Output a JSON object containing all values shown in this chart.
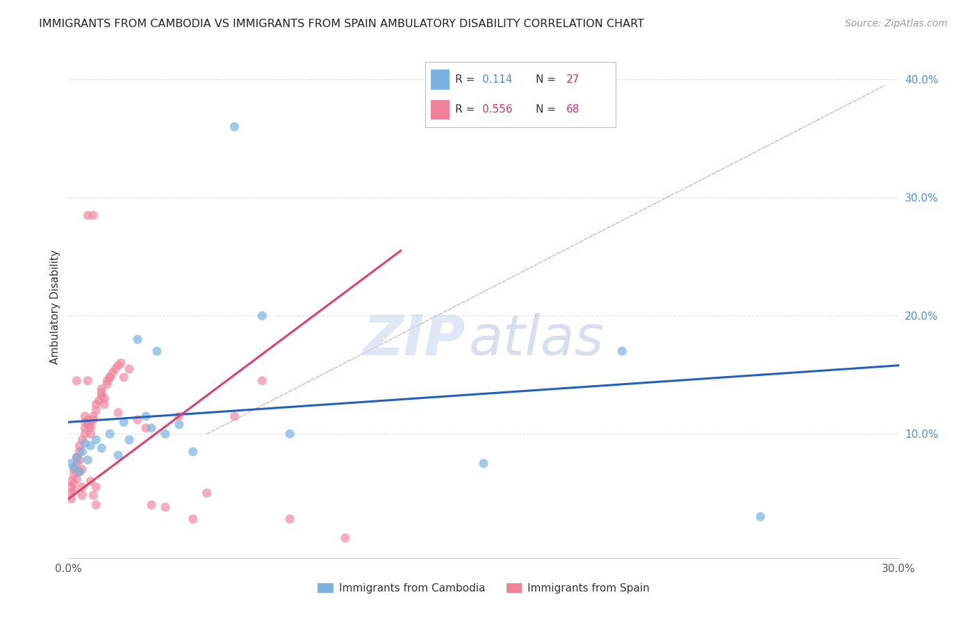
{
  "title": "IMMIGRANTS FROM CAMBODIA VS IMMIGRANTS FROM SPAIN AMBULATORY DISABILITY CORRELATION CHART",
  "source": "Source: ZipAtlas.com",
  "ylabel": "Ambulatory Disability",
  "xlim": [
    0.0,
    0.3
  ],
  "ylim": [
    -0.005,
    0.42
  ],
  "background_color": "#ffffff",
  "grid_color": "#dddddd",
  "cambodia_color": "#7ab3e0",
  "spain_color": "#f0829a",
  "cambodia_R": 0.114,
  "cambodia_N": 27,
  "spain_R": 0.556,
  "spain_N": 68,
  "cambodia_line_color": "#2060c0",
  "spain_line_color": "#e0406a",
  "ref_line_color": "#ccaaaa",
  "watermark_zip_color": "#c8d8f0",
  "watermark_atlas_color": "#b0c0e0",
  "cambodia_points": [
    [
      0.001,
      0.075
    ],
    [
      0.002,
      0.072
    ],
    [
      0.003,
      0.08
    ],
    [
      0.004,
      0.068
    ],
    [
      0.005,
      0.085
    ],
    [
      0.006,
      0.092
    ],
    [
      0.007,
      0.078
    ],
    [
      0.008,
      0.09
    ],
    [
      0.01,
      0.095
    ],
    [
      0.012,
      0.088
    ],
    [
      0.015,
      0.1
    ],
    [
      0.018,
      0.082
    ],
    [
      0.02,
      0.11
    ],
    [
      0.022,
      0.095
    ],
    [
      0.025,
      0.18
    ],
    [
      0.028,
      0.115
    ],
    [
      0.03,
      0.105
    ],
    [
      0.032,
      0.17
    ],
    [
      0.035,
      0.1
    ],
    [
      0.04,
      0.108
    ],
    [
      0.045,
      0.085
    ],
    [
      0.06,
      0.36
    ],
    [
      0.07,
      0.2
    ],
    [
      0.08,
      0.1
    ],
    [
      0.15,
      0.075
    ],
    [
      0.2,
      0.17
    ],
    [
      0.25,
      0.03
    ]
  ],
  "spain_points": [
    [
      0.001,
      0.05
    ],
    [
      0.001,
      0.055
    ],
    [
      0.001,
      0.06
    ],
    [
      0.001,
      0.045
    ],
    [
      0.002,
      0.052
    ],
    [
      0.002,
      0.07
    ],
    [
      0.002,
      0.065
    ],
    [
      0.002,
      0.058
    ],
    [
      0.003,
      0.075
    ],
    [
      0.003,
      0.08
    ],
    [
      0.003,
      0.062
    ],
    [
      0.003,
      0.145
    ],
    [
      0.004,
      0.068
    ],
    [
      0.004,
      0.078
    ],
    [
      0.004,
      0.085
    ],
    [
      0.004,
      0.09
    ],
    [
      0.005,
      0.048
    ],
    [
      0.005,
      0.055
    ],
    [
      0.005,
      0.07
    ],
    [
      0.005,
      0.095
    ],
    [
      0.006,
      0.1
    ],
    [
      0.006,
      0.105
    ],
    [
      0.006,
      0.11
    ],
    [
      0.006,
      0.115
    ],
    [
      0.007,
      0.108
    ],
    [
      0.007,
      0.112
    ],
    [
      0.007,
      0.145
    ],
    [
      0.007,
      0.285
    ],
    [
      0.008,
      0.06
    ],
    [
      0.008,
      0.1
    ],
    [
      0.008,
      0.105
    ],
    [
      0.008,
      0.108
    ],
    [
      0.009,
      0.112
    ],
    [
      0.009,
      0.115
    ],
    [
      0.009,
      0.048
    ],
    [
      0.009,
      0.285
    ],
    [
      0.01,
      0.055
    ],
    [
      0.01,
      0.04
    ],
    [
      0.01,
      0.12
    ],
    [
      0.01,
      0.125
    ],
    [
      0.011,
      0.128
    ],
    [
      0.012,
      0.132
    ],
    [
      0.012,
      0.135
    ],
    [
      0.012,
      0.138
    ],
    [
      0.013,
      0.13
    ],
    [
      0.013,
      0.125
    ],
    [
      0.014,
      0.142
    ],
    [
      0.014,
      0.145
    ],
    [
      0.015,
      0.148
    ],
    [
      0.015,
      0.148
    ],
    [
      0.016,
      0.152
    ],
    [
      0.017,
      0.155
    ],
    [
      0.018,
      0.118
    ],
    [
      0.018,
      0.158
    ],
    [
      0.019,
      0.16
    ],
    [
      0.02,
      0.148
    ],
    [
      0.022,
      0.155
    ],
    [
      0.025,
      0.112
    ],
    [
      0.028,
      0.105
    ],
    [
      0.03,
      0.04
    ],
    [
      0.035,
      0.038
    ],
    [
      0.04,
      0.115
    ],
    [
      0.045,
      0.028
    ],
    [
      0.05,
      0.05
    ],
    [
      0.06,
      0.115
    ],
    [
      0.07,
      0.145
    ],
    [
      0.08,
      0.028
    ],
    [
      0.1,
      0.012
    ]
  ]
}
